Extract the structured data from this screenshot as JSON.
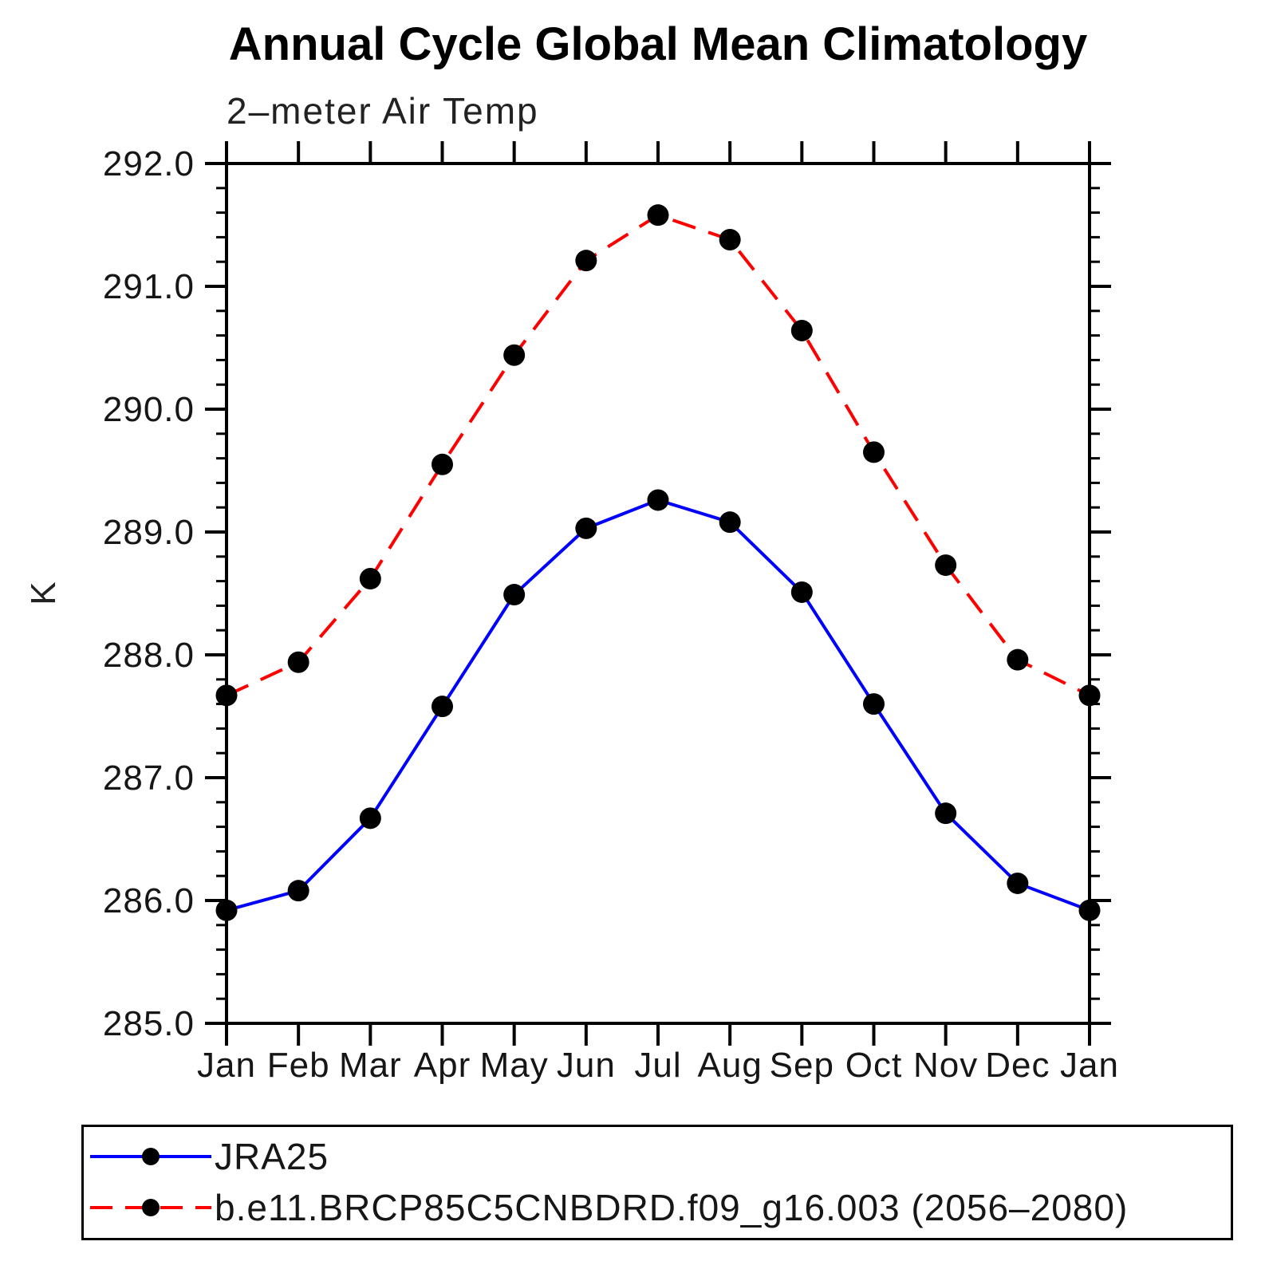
{
  "chart_data": {
    "type": "line",
    "title": "Annual Cycle Global Mean Climatology",
    "subtitle": "2–meter Air Temp",
    "xlabel": "",
    "ylabel": "K",
    "categories": [
      "Jan",
      "Feb",
      "Mar",
      "Apr",
      "May",
      "Jun",
      "Jul",
      "Aug",
      "Sep",
      "Oct",
      "Nov",
      "Dec",
      "Jan"
    ],
    "ylim": [
      285.0,
      292.0
    ],
    "ytick_step": 1.0,
    "yminor_step": 0.2,
    "ytick_labels": [
      "285.0",
      "286.0",
      "287.0",
      "288.0",
      "289.0",
      "290.0",
      "291.0",
      "292.0"
    ],
    "grid": false,
    "legend_position": "bottom-box",
    "frame_color": "#000000",
    "series": [
      {
        "name": "JRA25",
        "color": "#0000ff",
        "style": "solid",
        "marker": "circle",
        "marker_color": "#000000",
        "values": [
          285.92,
          286.08,
          286.67,
          287.58,
          288.49,
          289.03,
          289.26,
          289.08,
          288.51,
          287.6,
          286.71,
          286.14,
          285.92
        ]
      },
      {
        "name": "b.e11.BRCP85C5CNBDRD.f09_g16.003 (2056–2080)",
        "color": "#ff0000",
        "style": "dashed",
        "marker": "circle",
        "marker_color": "#000000",
        "values": [
          287.67,
          287.94,
          288.62,
          289.55,
          290.44,
          291.21,
          291.58,
          291.38,
          290.64,
          289.65,
          288.73,
          287.96,
          287.67
        ]
      }
    ]
  }
}
